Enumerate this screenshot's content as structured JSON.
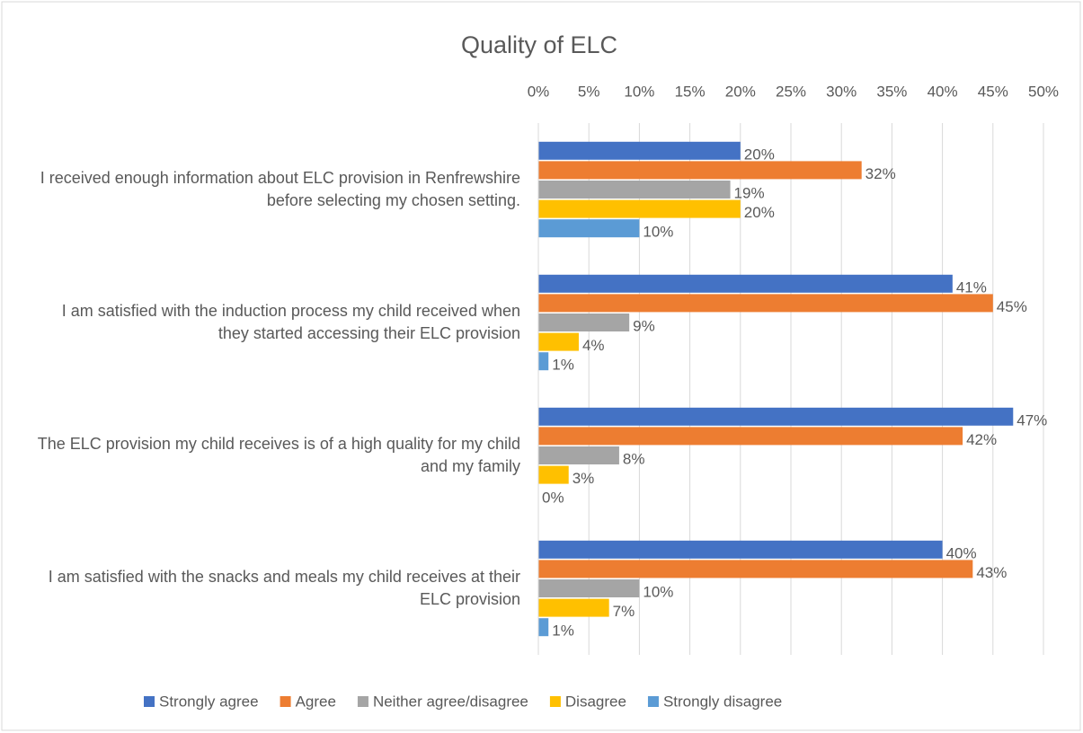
{
  "chart_data": {
    "type": "hbar",
    "title": "Quality of ELC",
    "categories": [
      "I received enough information about ELC provision in Renfrewshire before selecting my chosen setting.",
      "I am satisfied with the induction process my child received when they started accessing their ELC provision",
      "The ELC provision my child receives is of a high quality for my child and my family",
      "I am satisfied with the snacks and meals my child receives at their ELC provision"
    ],
    "series": [
      {
        "name": "Strongly agree",
        "color": "#4472c4",
        "values": [
          20,
          41,
          47,
          40
        ],
        "value_labels": [
          "20%",
          "41%",
          "47%",
          "40%"
        ]
      },
      {
        "name": "Agree",
        "color": "#ed7d31",
        "values": [
          32,
          45,
          42,
          43
        ],
        "value_labels": [
          "32%",
          "45%",
          "42%",
          "43%"
        ]
      },
      {
        "name": "Neither agree/disagree",
        "color": "#a5a5a5",
        "values": [
          19,
          9,
          8,
          10
        ],
        "value_labels": [
          "19%",
          "9%",
          "8%",
          "10%"
        ]
      },
      {
        "name": "Disagree",
        "color": "#ffc000",
        "values": [
          20,
          4,
          3,
          7
        ],
        "value_labels": [
          "20%",
          "4%",
          "3%",
          "7%"
        ]
      },
      {
        "name": "Strongly disagree",
        "color": "#5b9bd5",
        "values": [
          10,
          1,
          0,
          1
        ],
        "value_labels": [
          "10%",
          "1%",
          "0%",
          "1%"
        ]
      }
    ],
    "xlim": [
      0,
      50
    ],
    "xticks": [
      {
        "value": 0,
        "label": "0%"
      },
      {
        "value": 5,
        "label": "5%"
      },
      {
        "value": 10,
        "label": "10%"
      },
      {
        "value": 15,
        "label": "15%"
      },
      {
        "value": 20,
        "label": "20%"
      },
      {
        "value": 25,
        "label": "25%"
      },
      {
        "value": 30,
        "label": "30%"
      },
      {
        "value": 35,
        "label": "35%"
      },
      {
        "value": 40,
        "label": "40%"
      },
      {
        "value": 45,
        "label": "45%"
      },
      {
        "value": 50,
        "label": "50%"
      }
    ],
    "grid": true,
    "legend": "bottom"
  }
}
